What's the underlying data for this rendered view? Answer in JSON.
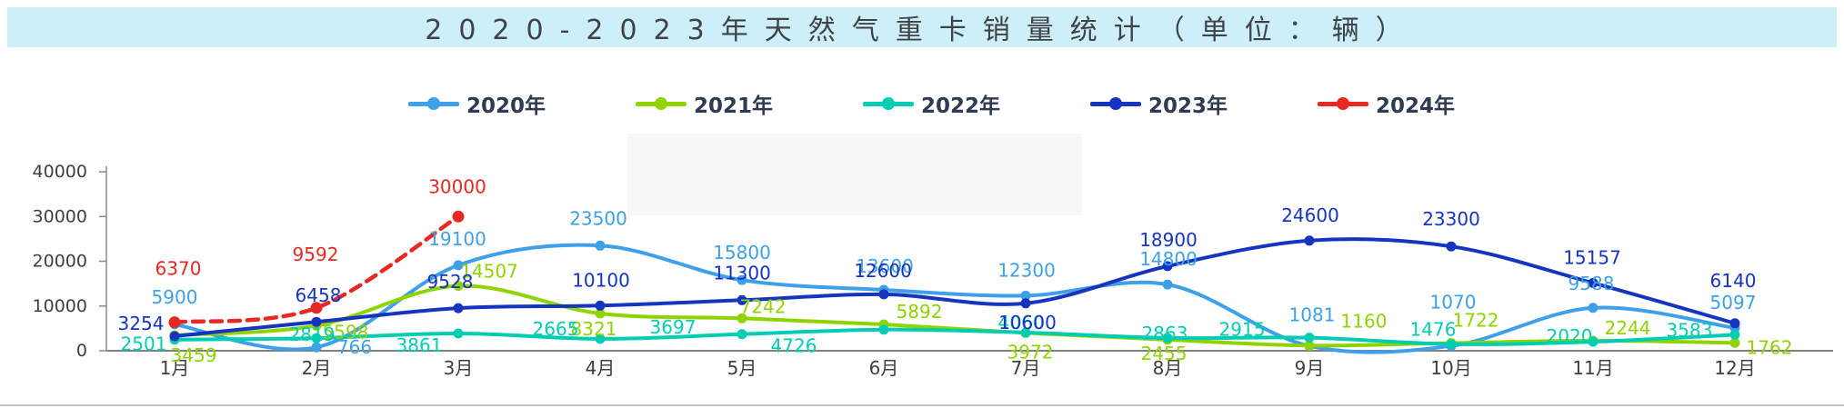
{
  "header": {
    "title": "2020-2023年天然气重卡销量统计（单位：辆）"
  },
  "chart_data": {
    "type": "line",
    "title": "2020-2023年天然气重卡销量统计（单位：辆）",
    "categories": [
      "1月",
      "2月",
      "3月",
      "4月",
      "5月",
      "6月",
      "7月",
      "8月",
      "9月",
      "10月",
      "11月",
      "12月"
    ],
    "series": [
      {
        "name": "2020年",
        "color": "#3FA0EA",
        "style": "solid",
        "values": [
          5900,
          766,
          19100,
          23500,
          15800,
          13600,
          12300,
          14800,
          1081,
          1070,
          9588,
          5097
        ]
      },
      {
        "name": "2021年",
        "color": "#8FD400",
        "style": "solid",
        "values": [
          3459,
          5598,
          14507,
          8321,
          7242,
          5892,
          3972,
          2455,
          1160,
          1722,
          2244,
          1762
        ]
      },
      {
        "name": "2022年",
        "color": "#00CDB1",
        "style": "solid",
        "values": [
          2501,
          2819,
          3861,
          2665,
          3697,
          4726,
          4060,
          2863,
          2915,
          1476,
          2020,
          3583
        ]
      },
      {
        "name": "2023年",
        "color": "#1534C0",
        "style": "solid",
        "values": [
          3254,
          6458,
          9528,
          10100,
          11300,
          12600,
          10600,
          18900,
          24600,
          23300,
          15157,
          6140
        ]
      },
      {
        "name": "2024年",
        "color": "#E82822",
        "style": "dashed",
        "values": [
          6370,
          9592,
          30000,
          null,
          null,
          null,
          null,
          null,
          null,
          null,
          null,
          null
        ]
      }
    ],
    "ylim": [
      0,
      40000
    ],
    "yticks": [
      0,
      10000,
      20000,
      30000,
      40000
    ],
    "grid": false,
    "legend_position": "top",
    "data_labels": true
  }
}
